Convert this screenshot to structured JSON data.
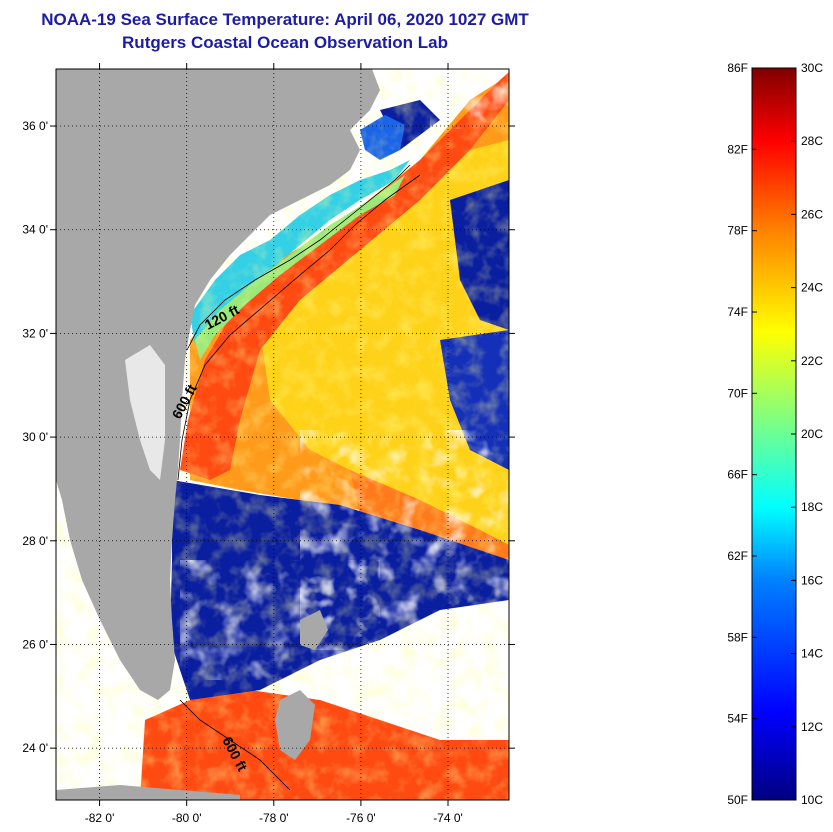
{
  "header": {
    "title": "NOAA-19 Sea Surface Temperature:  April 06, 2020 1027 GMT",
    "subtitle": "Rutgers Coastal Ocean Observation Lab"
  },
  "map": {
    "lat_range": [
      23.0,
      37.1
    ],
    "lon_range": [
      -83.0,
      -72.6
    ],
    "lat_ticks": [
      {
        "value": 36,
        "label": "36 0'"
      },
      {
        "value": 34,
        "label": "34 0'"
      },
      {
        "value": 32,
        "label": "32 0'"
      },
      {
        "value": 30,
        "label": "30 0'"
      },
      {
        "value": 28,
        "label": "28 0'"
      },
      {
        "value": 26,
        "label": "26 0'"
      },
      {
        "value": 24,
        "label": "24 0'"
      }
    ],
    "lon_ticks": [
      {
        "value": -82,
        "label": "-82 0'"
      },
      {
        "value": -80,
        "label": "-80 0'"
      },
      {
        "value": -78,
        "label": "-78 0'"
      },
      {
        "value": -76,
        "label": "-76 0'"
      },
      {
        "value": -74,
        "label": "-74 0'"
      }
    ],
    "contour_labels": {
      "c120": "120 ft",
      "c600a": "600 ft",
      "c600b": "600 ft"
    },
    "colors": {
      "land": "#a8a8a8",
      "cloud": "#ffffff",
      "gulf_stream": "#ff3a10",
      "offshore": "#ffd000",
      "shelf": "#29d6e6",
      "cold": "#0a1ea0"
    }
  },
  "colorbar": {
    "min_c": 10,
    "max_c": 30,
    "celsius_labels": [
      "30C",
      "28C",
      "26C",
      "24C",
      "22C",
      "20C",
      "18C",
      "16C",
      "14C",
      "12C",
      "10C"
    ],
    "fahrenheit_labels": [
      "86F",
      "82F",
      "78F",
      "74F",
      "70F",
      "66F",
      "62F",
      "58F",
      "54F",
      "50F"
    ],
    "colors": [
      "#000080",
      "#0000ff",
      "#0080ff",
      "#00ffff",
      "#80ff80",
      "#ffff00",
      "#ff8000",
      "#ff0000",
      "#800000"
    ]
  }
}
